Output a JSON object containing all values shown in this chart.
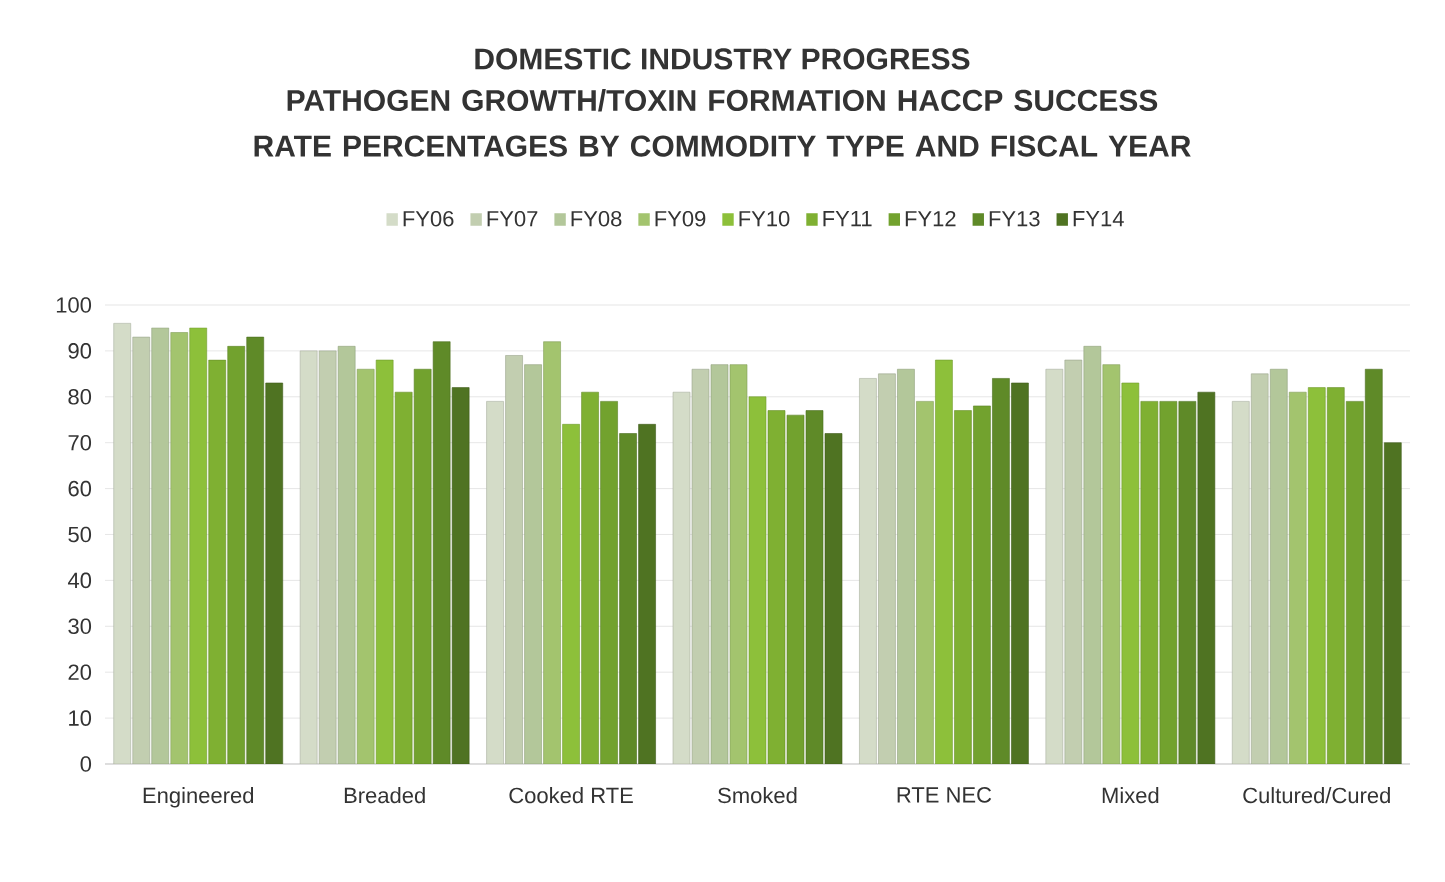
{
  "chart_data": {
    "type": "bar",
    "title": "DOMESTIC INDUSTRY PROGRESS",
    "subtitle": "PATHOGEN GROWTH/TOXIN FORMATION HACCP SUCCESS RATE PERCENTAGES BY COMMODITY TYPE AND FISCAL YEAR",
    "categories": [
      "Engineered",
      "Breaded",
      "Cooked RTE",
      "Smoked",
      "RTE NEC",
      "Mixed",
      "Cultured/Cured"
    ],
    "series": [
      {
        "name": "FY06",
        "color": "#d4dcc8",
        "values": [
          96,
          90,
          79,
          81,
          84,
          86,
          79
        ]
      },
      {
        "name": "FY07",
        "color": "#c2ceb0",
        "values": [
          93,
          90,
          89,
          86,
          85,
          88,
          85
        ]
      },
      {
        "name": "FY08",
        "color": "#b3c79a",
        "values": [
          95,
          91,
          87,
          87,
          86,
          91,
          86
        ]
      },
      {
        "name": "FY09",
        "color": "#a3c46e",
        "values": [
          94,
          86,
          92,
          87,
          79,
          87,
          81
        ]
      },
      {
        "name": "FY10",
        "color": "#8dc03a",
        "values": [
          95,
          88,
          74,
          80,
          88,
          83,
          82
        ]
      },
      {
        "name": "FY11",
        "color": "#7fb032",
        "values": [
          88,
          81,
          81,
          77,
          77,
          79,
          82
        ]
      },
      {
        "name": "FY12",
        "color": "#72a22e",
        "values": [
          91,
          86,
          79,
          76,
          78,
          79,
          79
        ]
      },
      {
        "name": "FY13",
        "color": "#5f8a28",
        "values": [
          93,
          92,
          72,
          77,
          84,
          79,
          86
        ]
      },
      {
        "name": "FY14",
        "color": "#4f7322",
        "values": [
          83,
          82,
          74,
          72,
          83,
          81,
          70
        ]
      }
    ],
    "ylim": [
      0,
      100
    ],
    "yticks": [
      0,
      10,
      20,
      30,
      40,
      50,
      60,
      70,
      80,
      90,
      100
    ],
    "grid": "y",
    "legend": "top"
  }
}
